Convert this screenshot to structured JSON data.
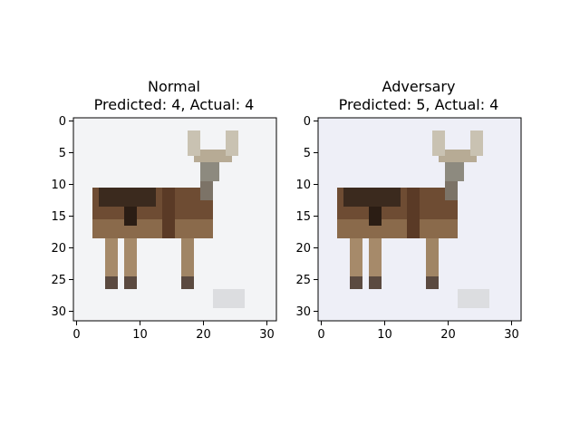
{
  "chart_data": [
    {
      "type": "heatmap",
      "title_line1": "Normal",
      "title_line2": "Predicted: 4, Actual: 4",
      "xticks": [
        "0",
        "10",
        "20",
        "30"
      ],
      "yticks": [
        "0",
        "5",
        "10",
        "15",
        "20",
        "25",
        "30"
      ],
      "xlim": [
        -0.5,
        31.5
      ],
      "ylim": [
        31.5,
        -0.5
      ],
      "image_size": [
        32,
        32
      ],
      "background_color": "#f3f4f6"
    },
    {
      "type": "heatmap",
      "title_line1": "Adversary",
      "title_line2": "Predicted: 5, Actual: 4",
      "xticks": [
        "0",
        "10",
        "20",
        "30"
      ],
      "yticks": [
        "0",
        "5",
        "10",
        "15",
        "20",
        "25",
        "30"
      ],
      "xlim": [
        -0.5,
        31.5
      ],
      "ylim": [
        31.5,
        -0.5
      ],
      "image_size": [
        32,
        32
      ],
      "background_color": "#eeeff7"
    }
  ]
}
